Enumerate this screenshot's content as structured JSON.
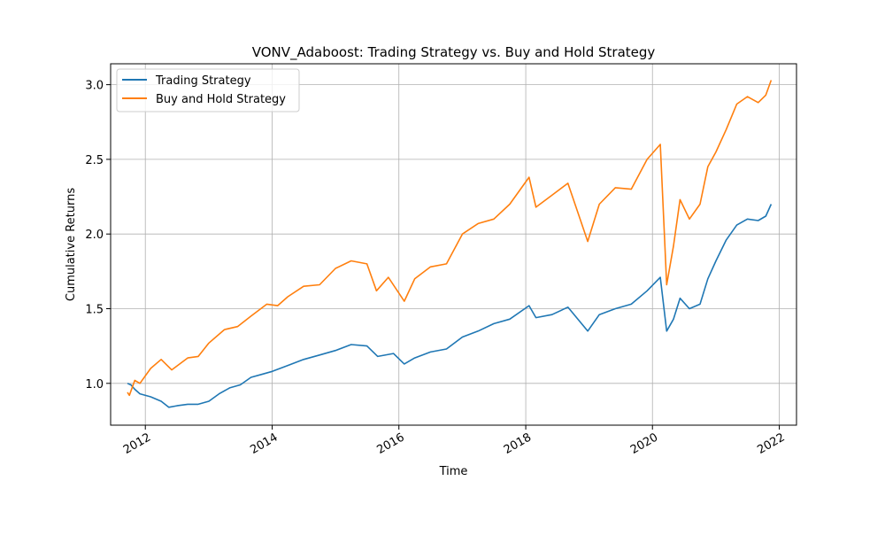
{
  "chart_data": {
    "type": "line",
    "title": "VONV_Adaboost: Trading Strategy vs. Buy and Hold Strategy",
    "xlabel": "Time",
    "ylabel": "Cumulative Returns",
    "xlim": [
      "2011-06-15",
      "2022-04-10"
    ],
    "ylim": [
      0.72,
      3.14
    ],
    "x_ticks": [
      "2012",
      "2014",
      "2016",
      "2018",
      "2020",
      "2022"
    ],
    "y_ticks": [
      "1.0",
      "1.5",
      "2.0",
      "2.5",
      "3.0"
    ],
    "grid": true,
    "legend_position": "upper-left",
    "series": [
      {
        "name": "Trading Strategy",
        "color": "#1f77b4",
        "points": [
          [
            "2011-09-20",
            1.0
          ],
          [
            "2011-10-10",
            0.99
          ],
          [
            "2011-11-01",
            0.96
          ],
          [
            "2011-12-01",
            0.93
          ],
          [
            "2012-02-01",
            0.91
          ],
          [
            "2012-04-01",
            0.88
          ],
          [
            "2012-05-15",
            0.84
          ],
          [
            "2012-07-01",
            0.85
          ],
          [
            "2012-09-01",
            0.86
          ],
          [
            "2012-11-01",
            0.86
          ],
          [
            "2013-01-01",
            0.88
          ],
          [
            "2013-03-01",
            0.93
          ],
          [
            "2013-05-01",
            0.97
          ],
          [
            "2013-07-01",
            0.99
          ],
          [
            "2013-09-01",
            1.04
          ],
          [
            "2013-11-01",
            1.06
          ],
          [
            "2014-01-01",
            1.08
          ],
          [
            "2014-04-01",
            1.12
          ],
          [
            "2014-07-01",
            1.16
          ],
          [
            "2014-10-01",
            1.19
          ],
          [
            "2015-01-01",
            1.22
          ],
          [
            "2015-04-01",
            1.26
          ],
          [
            "2015-07-01",
            1.25
          ],
          [
            "2015-09-01",
            1.18
          ],
          [
            "2015-12-01",
            1.2
          ],
          [
            "2016-02-01",
            1.13
          ],
          [
            "2016-04-01",
            1.17
          ],
          [
            "2016-07-01",
            1.21
          ],
          [
            "2016-10-01",
            1.23
          ],
          [
            "2017-01-01",
            1.31
          ],
          [
            "2017-04-01",
            1.35
          ],
          [
            "2017-07-01",
            1.4
          ],
          [
            "2017-10-01",
            1.43
          ],
          [
            "2018-01-20",
            1.52
          ],
          [
            "2018-03-01",
            1.44
          ],
          [
            "2018-06-01",
            1.46
          ],
          [
            "2018-09-01",
            1.51
          ],
          [
            "2018-12-24",
            1.35
          ],
          [
            "2019-03-01",
            1.46
          ],
          [
            "2019-06-01",
            1.5
          ],
          [
            "2019-09-01",
            1.53
          ],
          [
            "2019-12-01",
            1.62
          ],
          [
            "2020-02-15",
            1.71
          ],
          [
            "2020-03-23",
            1.35
          ],
          [
            "2020-05-01",
            1.43
          ],
          [
            "2020-06-08",
            1.57
          ],
          [
            "2020-08-01",
            1.5
          ],
          [
            "2020-10-01",
            1.53
          ],
          [
            "2020-11-15",
            1.7
          ],
          [
            "2021-01-01",
            1.82
          ],
          [
            "2021-03-01",
            1.96
          ],
          [
            "2021-05-01",
            2.06
          ],
          [
            "2021-07-01",
            2.1
          ],
          [
            "2021-09-01",
            2.09
          ],
          [
            "2021-10-15",
            2.12
          ],
          [
            "2021-11-15",
            2.2
          ]
        ]
      },
      {
        "name": "Buy and Hold Strategy",
        "color": "#ff7f0e",
        "points": [
          [
            "2011-09-20",
            0.94
          ],
          [
            "2011-10-01",
            0.92
          ],
          [
            "2011-11-01",
            1.02
          ],
          [
            "2011-12-01",
            1.0
          ],
          [
            "2012-02-01",
            1.1
          ],
          [
            "2012-04-01",
            1.16
          ],
          [
            "2012-06-01",
            1.09
          ],
          [
            "2012-09-01",
            1.17
          ],
          [
            "2012-11-01",
            1.18
          ],
          [
            "2013-01-01",
            1.27
          ],
          [
            "2013-04-01",
            1.36
          ],
          [
            "2013-06-15",
            1.38
          ],
          [
            "2013-09-01",
            1.45
          ],
          [
            "2013-12-01",
            1.53
          ],
          [
            "2014-02-01",
            1.52
          ],
          [
            "2014-04-01",
            1.58
          ],
          [
            "2014-07-01",
            1.65
          ],
          [
            "2014-10-01",
            1.66
          ],
          [
            "2015-01-01",
            1.77
          ],
          [
            "2015-04-01",
            1.82
          ],
          [
            "2015-07-01",
            1.8
          ],
          [
            "2015-08-25",
            1.62
          ],
          [
            "2015-11-01",
            1.71
          ],
          [
            "2016-02-01",
            1.55
          ],
          [
            "2016-04-01",
            1.7
          ],
          [
            "2016-07-01",
            1.78
          ],
          [
            "2016-10-01",
            1.8
          ],
          [
            "2017-01-01",
            2.0
          ],
          [
            "2017-04-01",
            2.07
          ],
          [
            "2017-07-01",
            2.1
          ],
          [
            "2017-10-01",
            2.2
          ],
          [
            "2018-01-20",
            2.38
          ],
          [
            "2018-03-01",
            2.18
          ],
          [
            "2018-06-01",
            2.26
          ],
          [
            "2018-09-01",
            2.34
          ],
          [
            "2018-12-24",
            1.95
          ],
          [
            "2019-03-01",
            2.2
          ],
          [
            "2019-06-01",
            2.31
          ],
          [
            "2019-09-01",
            2.3
          ],
          [
            "2019-12-01",
            2.5
          ],
          [
            "2020-02-15",
            2.6
          ],
          [
            "2020-03-23",
            1.66
          ],
          [
            "2020-05-01",
            1.92
          ],
          [
            "2020-06-08",
            2.23
          ],
          [
            "2020-08-01",
            2.1
          ],
          [
            "2020-10-01",
            2.2
          ],
          [
            "2020-11-15",
            2.45
          ],
          [
            "2021-01-01",
            2.55
          ],
          [
            "2021-03-01",
            2.7
          ],
          [
            "2021-05-01",
            2.87
          ],
          [
            "2021-07-01",
            2.92
          ],
          [
            "2021-09-01",
            2.88
          ],
          [
            "2021-10-15",
            2.93
          ],
          [
            "2021-11-15",
            3.03
          ]
        ]
      }
    ]
  }
}
